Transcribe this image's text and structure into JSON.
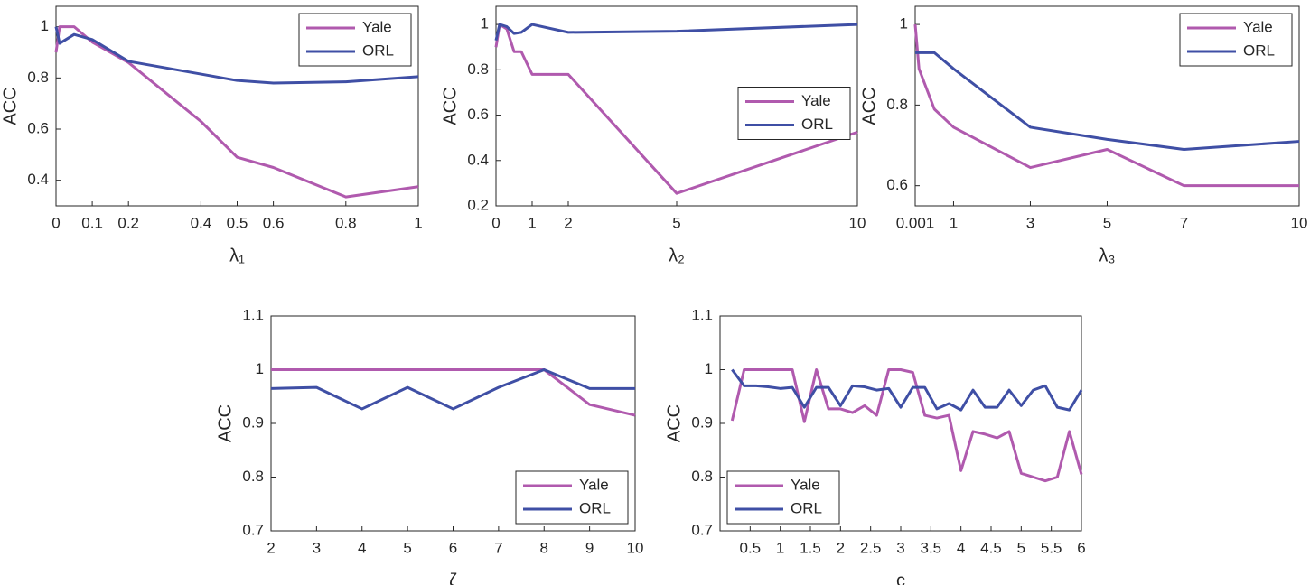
{
  "chart_data": [
    {
      "type": "line",
      "xlabel": "λ₁",
      "ylabel": "ACC",
      "x": [
        0,
        0.01,
        0.05,
        0.1,
        0.2,
        0.4,
        0.5,
        0.6,
        0.8,
        1
      ],
      "xlim": [
        0,
        1
      ],
      "xticks": [
        0,
        0.1,
        0.2,
        0.4,
        0.5,
        0.6,
        0.8,
        1
      ],
      "ylim": [
        0.3,
        1.08
      ],
      "yticks": [
        0.4,
        0.6,
        0.8,
        1
      ],
      "legend": "upper right",
      "series": [
        {
          "name": "Yale",
          "color": "#B05AAE",
          "values": [
            0.9,
            1.0,
            1.0,
            0.94,
            0.86,
            0.63,
            0.49,
            0.45,
            0.335,
            0.375
          ]
        },
        {
          "name": "ORL",
          "color": "#3F4FA5",
          "values": [
            1.0,
            0.935,
            0.97,
            0.95,
            0.865,
            0.815,
            0.79,
            0.78,
            0.785,
            0.805
          ]
        }
      ]
    },
    {
      "type": "line",
      "xlabel": "λ₂",
      "ylabel": "ACC",
      "x": [
        0,
        0.1,
        0.3,
        0.5,
        0.7,
        1,
        2,
        5,
        10
      ],
      "xlim": [
        0,
        10
      ],
      "xticks": [
        0,
        1,
        2,
        5,
        10
      ],
      "ylim": [
        0.2,
        1.08
      ],
      "yticks": [
        0.2,
        0.4,
        0.6,
        0.8,
        1
      ],
      "legend": "center right",
      "series": [
        {
          "name": "Yale",
          "color": "#B05AAE",
          "values": [
            0.9,
            1.0,
            0.98,
            0.88,
            0.88,
            0.78,
            0.78,
            0.255,
            0.525
          ]
        },
        {
          "name": "ORL",
          "color": "#3F4FA5",
          "values": [
            0.93,
            1.0,
            0.99,
            0.96,
            0.965,
            1.0,
            0.965,
            0.97,
            1.0
          ]
        }
      ]
    },
    {
      "type": "line",
      "xlabel": "λ₃",
      "ylabel": "ACC",
      "x": [
        0.001,
        0.1,
        0.5,
        1,
        3,
        5,
        7,
        10
      ],
      "xlim": [
        0.001,
        10
      ],
      "xticks": [
        0.001,
        1,
        3,
        5,
        7,
        10
      ],
      "ylim": [
        0.55,
        1.045
      ],
      "yticks": [
        0.6,
        0.8,
        1
      ],
      "legend": "upper right",
      "series": [
        {
          "name": "Yale",
          "color": "#B05AAE",
          "values": [
            1.0,
            0.89,
            0.79,
            0.745,
            0.645,
            0.69,
            0.6,
            0.6
          ]
        },
        {
          "name": "ORL",
          "color": "#3F4FA5",
          "values": [
            0.93,
            0.93,
            0.93,
            0.89,
            0.745,
            0.715,
            0.69,
            0.71
          ]
        }
      ]
    },
    {
      "type": "line",
      "xlabel": "ζ",
      "ylabel": "ACC",
      "x": [
        2,
        3,
        4,
        5,
        6,
        7,
        8,
        9,
        10
      ],
      "xlim": [
        2,
        10
      ],
      "xticks": [
        2,
        3,
        4,
        5,
        6,
        7,
        8,
        9,
        10
      ],
      "ylim": [
        0.7,
        1.1
      ],
      "yticks": [
        0.7,
        0.8,
        0.9,
        1,
        1.1
      ],
      "legend": "lower right",
      "series": [
        {
          "name": "Yale",
          "color": "#B05AAE",
          "values": [
            1,
            1,
            1,
            1,
            1,
            1,
            1,
            0.935,
            0.915
          ]
        },
        {
          "name": "ORL",
          "color": "#3F4FA5",
          "values": [
            0.965,
            0.967,
            0.927,
            0.967,
            0.927,
            0.967,
            1.0,
            0.965,
            0.965
          ]
        }
      ]
    },
    {
      "type": "line",
      "xlabel": "c",
      "ylabel": "ACC",
      "x": [
        0.2,
        0.4,
        0.6,
        0.8,
        1.0,
        1.2,
        1.4,
        1.6,
        1.8,
        2.0,
        2.2,
        2.4,
        2.6,
        2.8,
        3.0,
        3.2,
        3.4,
        3.6,
        3.8,
        4.0,
        4.2,
        4.4,
        4.6,
        4.8,
        5.0,
        5.2,
        5.4,
        5.6,
        5.8,
        6.0
      ],
      "xlim": [
        0,
        6
      ],
      "xticks": [
        0.5,
        1,
        1.5,
        2,
        2.5,
        3,
        3.5,
        4,
        4.5,
        5,
        5.5,
        6
      ],
      "ylim": [
        0.7,
        1.1
      ],
      "yticks": [
        0.7,
        0.8,
        0.9,
        1,
        1.1
      ],
      "legend": "lower left",
      "series": [
        {
          "name": "Yale",
          "color": "#B05AAE",
          "values": [
            0.905,
            1,
            1,
            1,
            1,
            1,
            0.903,
            1,
            0.927,
            0.927,
            0.92,
            0.933,
            0.915,
            1,
            1,
            0.995,
            0.915,
            0.91,
            0.915,
            0.812,
            0.885,
            0.88,
            0.873,
            0.885,
            0.807,
            0.8,
            0.793,
            0.8,
            0.885,
            0.805
          ]
        },
        {
          "name": "ORL",
          "color": "#3F4FA5",
          "values": [
            1.0,
            0.97,
            0.97,
            0.968,
            0.965,
            0.967,
            0.93,
            0.967,
            0.967,
            0.933,
            0.97,
            0.968,
            0.962,
            0.965,
            0.93,
            0.967,
            0.967,
            0.927,
            0.937,
            0.925,
            0.962,
            0.93,
            0.93,
            0.962,
            0.933,
            0.962,
            0.97,
            0.93,
            0.925,
            0.962
          ]
        }
      ]
    }
  ]
}
